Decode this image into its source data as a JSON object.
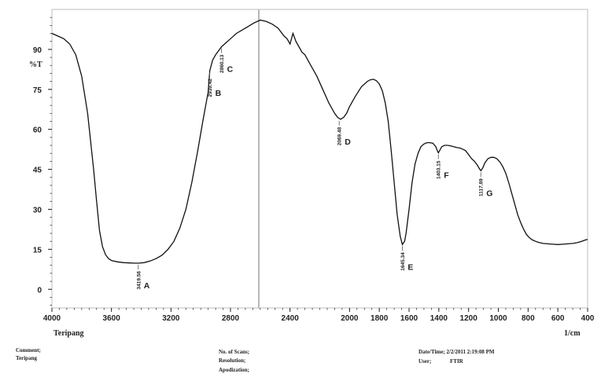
{
  "chart_data": {
    "type": "line",
    "ylabel": "%T",
    "xlabel": "1/cm",
    "sample_name": "Teripang",
    "xlim": [
      4000,
      400
    ],
    "ylim": [
      -7,
      105
    ],
    "x_ticks": [
      4000,
      3600,
      3200,
      2800,
      2400,
      2000,
      1800,
      1600,
      1400,
      1200,
      1000,
      800,
      600,
      400
    ],
    "x_tick_labels": [
      "4000",
      "3600",
      "3200",
      "2800",
      "2400",
      "2000",
      "1800",
      "1600",
      "1400",
      "1200",
      "1000",
      "800",
      "600",
      "400"
    ],
    "y_ticks": [
      0,
      15,
      30,
      45,
      60,
      75,
      90
    ],
    "y_tick_labels": [
      "0",
      "15",
      "30",
      "45",
      "60",
      "75",
      "90"
    ],
    "series": [
      {
        "x": [
          4000,
          3960,
          3920,
          3880,
          3840,
          3800,
          3760,
          3720,
          3700,
          3680,
          3660,
          3640,
          3620,
          3600,
          3560,
          3520,
          3480,
          3440,
          3419,
          3380,
          3340,
          3300,
          3260,
          3220,
          3180,
          3140,
          3100,
          3060,
          3020,
          2989,
          2950,
          2939,
          2920,
          2900,
          2860,
          2800,
          2760,
          2700,
          2640,
          2600,
          2560,
          2520,
          2480,
          2440,
          2420,
          2400,
          2380,
          2360,
          2340,
          2320,
          2300,
          2260,
          2220,
          2180,
          2140,
          2100,
          2080,
          2060,
          2040,
          2020,
          2000,
          1960,
          1920,
          1880,
          1860,
          1840,
          1820,
          1800,
          1780,
          1760,
          1740,
          1720,
          1700,
          1680,
          1660,
          1645,
          1630,
          1620,
          1600,
          1580,
          1560,
          1540,
          1520,
          1500,
          1480,
          1460,
          1440,
          1420,
          1410,
          1403,
          1395,
          1380,
          1360,
          1340,
          1320,
          1300,
          1280,
          1260,
          1240,
          1220,
          1200,
          1180,
          1160,
          1140,
          1125,
          1117,
          1105,
          1090,
          1070,
          1050,
          1030,
          1010,
          990,
          970,
          950,
          930,
          910,
          890,
          870,
          850,
          830,
          810,
          790,
          770,
          750,
          730,
          700,
          650,
          600,
          550,
          500,
          470,
          440,
          420,
          400
        ],
        "y": [
          96,
          95,
          94,
          92,
          88,
          80,
          66,
          45,
          33,
          22,
          16,
          13,
          11.5,
          10.8,
          10.3,
          10,
          9.9,
          9.8,
          9.8,
          10,
          10.6,
          11.5,
          12.8,
          15,
          18,
          23,
          30,
          40,
          52,
          62,
          74,
          82,
          86,
          88,
          91,
          94,
          96,
          98,
          100,
          101,
          100.5,
          99.5,
          98,
          95,
          94,
          92,
          96,
          93,
          91,
          89,
          88,
          84,
          80,
          75,
          70,
          66,
          64.5,
          63.8,
          64.5,
          66,
          68.5,
          72.5,
          76,
          78,
          78.6,
          78.8,
          78.3,
          77,
          74.5,
          70,
          63,
          52,
          40,
          28,
          20,
          16.8,
          18,
          21,
          30,
          40,
          47,
          51,
          53.5,
          54.5,
          55,
          55,
          54.8,
          53.5,
          52,
          51.2,
          52,
          53.5,
          54,
          54,
          53.8,
          53.5,
          53.2,
          53,
          52.6,
          52,
          50.5,
          49,
          48,
          46.5,
          45,
          44.5,
          45.5,
          47.5,
          49,
          49.5,
          49.5,
          49,
          47.8,
          46,
          43.5,
          40,
          36,
          32,
          28,
          25,
          22.5,
          20.5,
          19.3,
          18.5,
          18,
          17.6,
          17.2,
          17,
          16.8,
          17,
          17.2,
          17.5,
          18,
          18.4,
          18.7
        ]
      }
    ],
    "peaks": [
      {
        "x": 3419.56,
        "y": 9.8,
        "label": "3419.56",
        "letter": "A"
      },
      {
        "x": 2939.42,
        "y": 82,
        "label": "2939.42",
        "letter": "B"
      },
      {
        "x": 2860.13,
        "y": 91,
        "label": "2860.13",
        "letter": "C"
      },
      {
        "x": 2069.48,
        "y": 63.8,
        "label": "2069.48",
        "letter": "D"
      },
      {
        "x": 1645.34,
        "y": 16.8,
        "label": "1645.34",
        "letter": "E"
      },
      {
        "x": 1403.15,
        "y": 51.2,
        "label": "1403.15",
        "letter": "F"
      },
      {
        "x": 1117.89,
        "y": 44.5,
        "label": "1117.89",
        "letter": "G"
      }
    ],
    "grid": false,
    "legend": "none"
  },
  "footer": {
    "comment_label": "Comment;",
    "comment_value": "Teripang",
    "scans_label": "No. of Scans;",
    "resolution_label": "Resolution;",
    "apodization_label": "Apodization;",
    "datetime_label": "Date/Time; 2/2/2011 2:19:08 PM",
    "user_label": "User;",
    "user_value": "FTIR"
  },
  "colors": {
    "line": "#111111",
    "axis": "#222222",
    "frame": "#bdbdbd",
    "marker_line": "#b8b8b8"
  }
}
